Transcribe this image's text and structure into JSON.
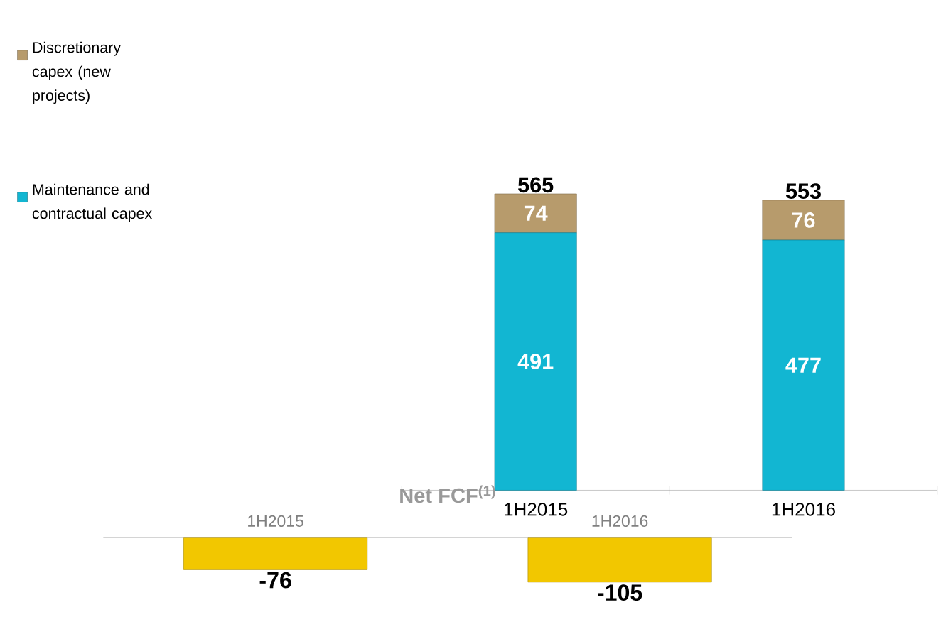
{
  "chart_data": [
    {
      "type": "bar",
      "stacked": true,
      "categories": [
        "1H2015",
        "1H2016"
      ],
      "series": [
        {
          "name": "Maintenance and contractual capex",
          "color": "#12b6d2",
          "values": [
            491,
            477
          ]
        },
        {
          "name": "Discretionary capex (new projects)",
          "color": "#b79b6c",
          "values": [
            74,
            76
          ]
        }
      ],
      "totals": [
        "565",
        "553"
      ],
      "data_labels": true,
      "legend": "left"
    },
    {
      "type": "bar",
      "title": "Net FCF$^{(1)}$",
      "categories": [
        "1H2015",
        "1H2016"
      ],
      "values": [
        -76,
        -105
      ],
      "color": "#f2c700",
      "data_labels": true
    }
  ]
}
